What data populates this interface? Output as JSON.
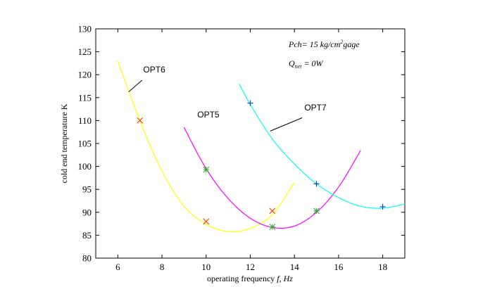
{
  "chart_data": {
    "type": "line",
    "title": "",
    "xlabel_prefix": "operating frequency ",
    "xlabel_var": "f",
    "xlabel_suffix": ", Hz",
    "ylabel": "cold end temperature K",
    "xlim": [
      5,
      19
    ],
    "ylim": [
      80,
      130
    ],
    "x_ticks": [
      6,
      8,
      10,
      12,
      14,
      16,
      18
    ],
    "y_ticks": [
      80,
      85,
      90,
      95,
      100,
      105,
      110,
      115,
      120,
      125,
      130
    ],
    "grid": false,
    "annotations": {
      "pressure_prefix": "Pch= 15 kg/cm",
      "pressure_sup": "2",
      "pressure_suffix": "gage",
      "q_symbol": "Q",
      "q_sub": "net",
      "q_value": " = 0W"
    },
    "series": [
      {
        "name": "OPT6",
        "color": "#ffff00",
        "marker": "x",
        "marker_color": "#ff3300",
        "curve": [
          [
            6,
            123
          ],
          [
            7,
            110
          ],
          [
            8,
            99
          ],
          [
            9,
            91.3
          ],
          [
            10,
            87.4
          ],
          [
            11,
            85.8
          ],
          [
            12,
            86.5
          ],
          [
            13,
            89.5
          ],
          [
            14,
            96.5
          ]
        ],
        "points": [
          [
            7,
            110
          ],
          [
            10,
            88
          ],
          [
            13,
            90.3
          ]
        ]
      },
      {
        "name": "OPT5",
        "color": "#ff00ff",
        "marker": "*",
        "marker_color": "#33aa33",
        "curve": [
          [
            9,
            108.5
          ],
          [
            10,
            99.5
          ],
          [
            11,
            93
          ],
          [
            12,
            88.7
          ],
          [
            13,
            86.7
          ],
          [
            14,
            87
          ],
          [
            15,
            90
          ],
          [
            16,
            95.5
          ],
          [
            17,
            103.5
          ]
        ],
        "points": [
          [
            10,
            99.3
          ],
          [
            13,
            86.8
          ],
          [
            15,
            90.3
          ]
        ]
      },
      {
        "name": "OPT7",
        "color": "#00ffff",
        "marker": "+",
        "marker_color": "#0033cc",
        "curve": [
          [
            11.5,
            118
          ],
          [
            12,
            113.5
          ],
          [
            13,
            106
          ],
          [
            14,
            100.5
          ],
          [
            15,
            96.2
          ],
          [
            16,
            93.2
          ],
          [
            17,
            91.3
          ],
          [
            18,
            90.9
          ],
          [
            19,
            91.8
          ]
        ],
        "points": [
          [
            12,
            113.8
          ],
          [
            15,
            96.2
          ],
          [
            18,
            91.2
          ]
        ]
      }
    ],
    "labels": [
      {
        "series": "OPT6",
        "text": "OPT6",
        "x": 7.15,
        "y": 120.5,
        "leader_from": [
          7.1,
          118.8
        ],
        "leader_to": [
          6.5,
          116.3
        ]
      },
      {
        "series": "OPT5",
        "text": "OPT5",
        "x": 9.6,
        "y": 110.7,
        "leader_from": null,
        "leader_to": null
      },
      {
        "series": "OPT7",
        "text": "OPT7",
        "x": 14.45,
        "y": 112.2,
        "leader_from": [
          14.35,
          110.6
        ],
        "leader_to": [
          12.9,
          107.7
        ]
      }
    ]
  }
}
